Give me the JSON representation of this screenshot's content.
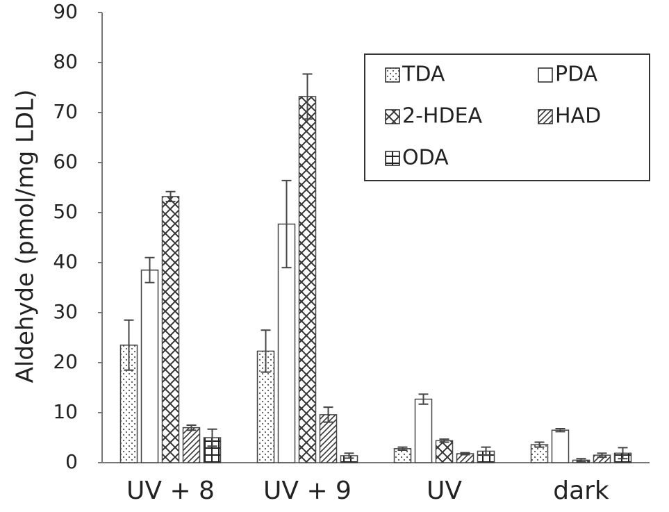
{
  "chart_data": {
    "type": "bar",
    "y_label": "Aldehyde (pmol/mg LDL)",
    "categories": [
      "UV + 8",
      "UV + 9",
      "UV",
      "dark"
    ],
    "series": [
      {
        "name": "TDA",
        "color": "#444444",
        "pattern": "dots",
        "values": [
          23.5,
          22.3,
          2.8,
          3.6
        ],
        "errors": [
          5,
          4.2,
          0.3,
          0.5
        ]
      },
      {
        "name": "PDA",
        "color": "#444444",
        "pattern": "none",
        "values": [
          38.5,
          47.7,
          12.7,
          6.5
        ],
        "errors": [
          2.5,
          8.7,
          1,
          0.3
        ]
      },
      {
        "name": "2-HDEA",
        "color": "#444444",
        "pattern": "cross",
        "values": [
          53.2,
          73.2,
          4.4,
          0.5
        ],
        "errors": [
          1,
          4.5,
          0.3,
          0.3
        ]
      },
      {
        "name": "HAD",
        "color": "#444444",
        "pattern": "diagonal",
        "values": [
          7,
          9.6,
          1.8,
          1.5
        ],
        "errors": [
          0.5,
          1.5,
          0.2,
          0.4
        ]
      },
      {
        "name": "ODA",
        "color": "#444444",
        "pattern": "grid",
        "values": [
          5,
          1.4,
          2.3,
          1.9
        ],
        "errors": [
          1.7,
          0.5,
          0.8,
          1.1
        ]
      }
    ],
    "ylim": [
      0,
      90
    ],
    "yticks": [
      0,
      10,
      20,
      30,
      40,
      50,
      60,
      70,
      80,
      90
    ],
    "grid": false,
    "legend_position": "upper-right"
  }
}
